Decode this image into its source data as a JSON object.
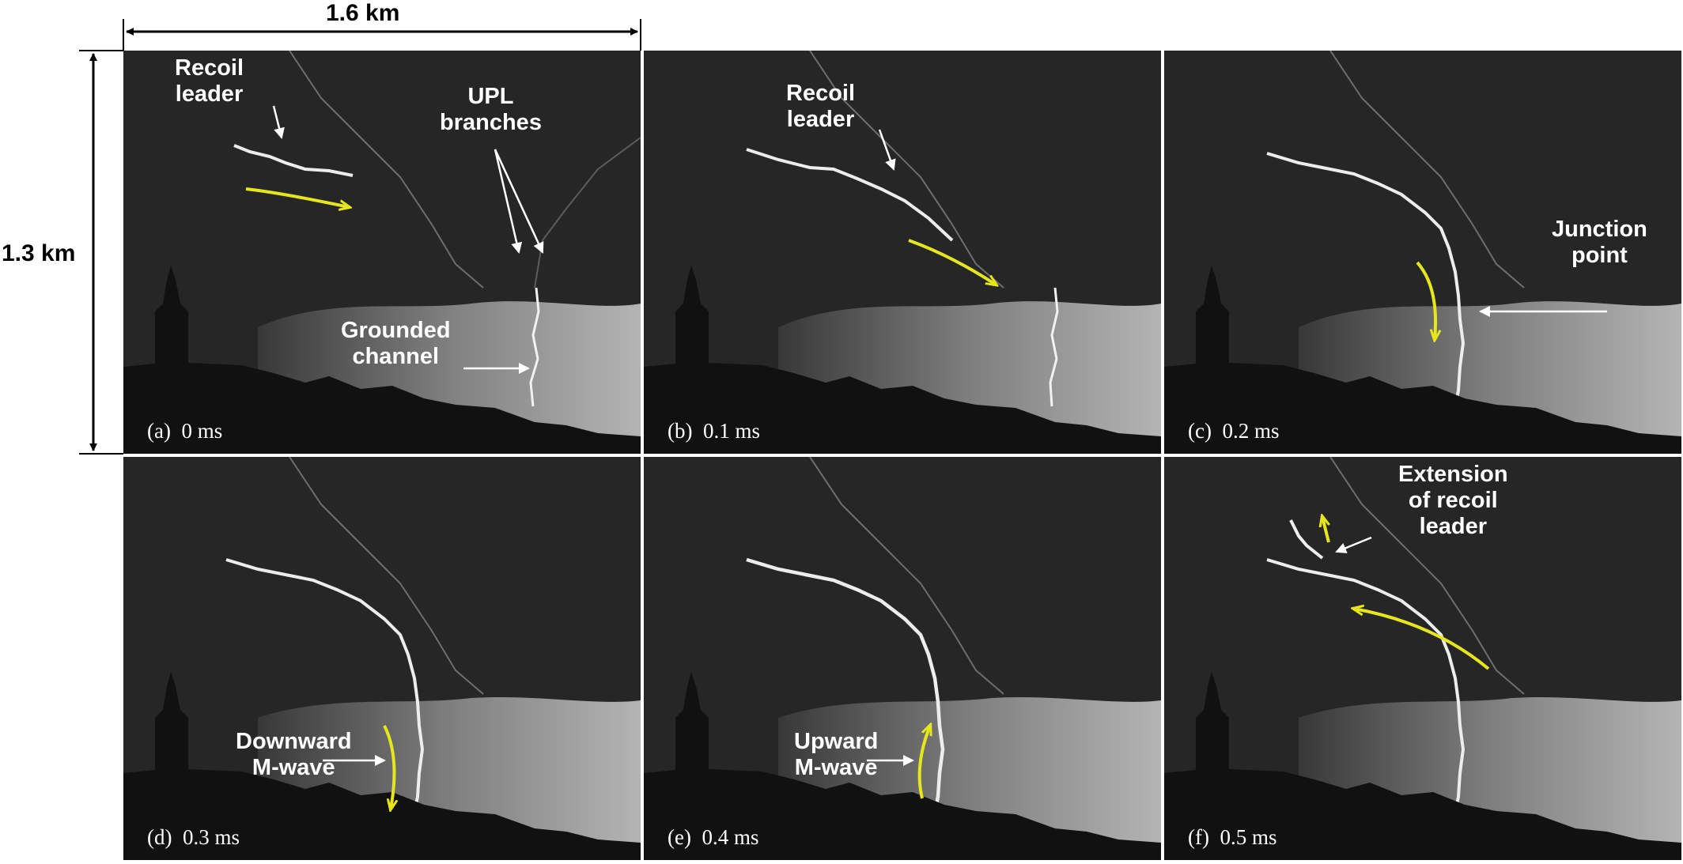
{
  "scale": {
    "width_label": "1.6 km",
    "height_label": "1.3 km"
  },
  "colors": {
    "leader_arrow": "#e6e61e",
    "annotation": "#ffffff",
    "sky": "#262626",
    "cloud_base": "#bdbdbd"
  },
  "panels": [
    {
      "tag": "(a)",
      "time": "0 ms",
      "labels": {
        "recoil_line1": "Recoil",
        "recoil_line2": "leader",
        "upl_line1": "UPL",
        "upl_line2": "branches",
        "ground_line1": "Grounded",
        "ground_line2": "channel"
      }
    },
    {
      "tag": "(b)",
      "time": "0.1 ms",
      "labels": {
        "recoil_line1": "Recoil",
        "recoil_line2": "leader"
      }
    },
    {
      "tag": "(c)",
      "time": "0.2 ms",
      "labels": {
        "junction_line1": "Junction",
        "junction_line2": "point"
      }
    },
    {
      "tag": "(d)",
      "time": "0.3 ms",
      "labels": {
        "mwave_line1": "Downward",
        "mwave_line2": "M-wave"
      }
    },
    {
      "tag": "(e)",
      "time": "0.4 ms",
      "labels": {
        "mwave_line1": "Upward",
        "mwave_line2": "M-wave"
      }
    },
    {
      "tag": "(f)",
      "time": "0.5 ms",
      "labels": {
        "ext_line1": "Extension",
        "ext_line2": "of recoil",
        "ext_line3": "leader"
      }
    }
  ]
}
